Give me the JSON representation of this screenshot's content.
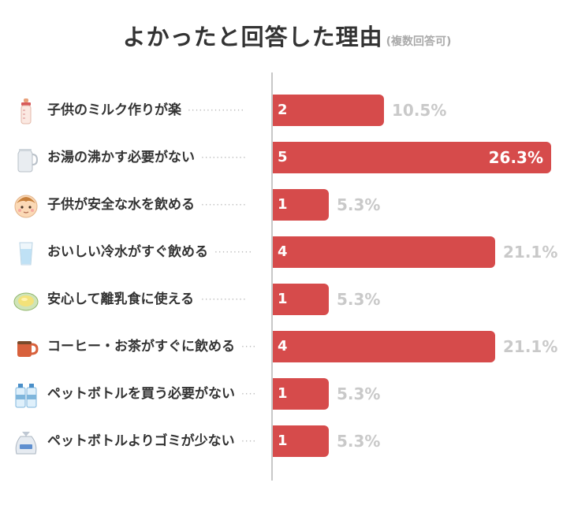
{
  "title": "よかったと回答した理由",
  "subtitle": "(複数回答可)",
  "colors": {
    "bar": "#d64b4b",
    "pct_outside": "#c9c9c9",
    "text": "#333333"
  },
  "chart_data": {
    "type": "bar",
    "orientation": "horizontal",
    "title": "よかったと回答した理由",
    "subtitle": "(複数回答可)",
    "categories": [
      "子供のミルク作りが楽",
      "お湯の沸かす必要がない",
      "子供が安全な水を飲める",
      "おいしい冷水がすぐ飲める",
      "安心して離乳食に使える",
      "コーヒー・お茶がすぐに飲める",
      "ペットボトルを買う必要がない",
      "ペットボトルよりゴミが少ない"
    ],
    "values": [
      2,
      5,
      1,
      4,
      1,
      4,
      1,
      1
    ],
    "percent_labels": [
      "10.5%",
      "26.3%",
      "5.3%",
      "21.1%",
      "5.3%",
      "21.1%",
      "5.3%",
      "5.3%"
    ],
    "icons": [
      "baby-bottle-icon",
      "kettle-icon",
      "baby-face-icon",
      "water-glass-icon",
      "baby-food-bowl-icon",
      "coffee-mug-icon",
      "water-bottles-icon",
      "trash-bag-icon"
    ],
    "xlim": [
      0,
      5
    ],
    "grid": false,
    "legend": "none"
  }
}
